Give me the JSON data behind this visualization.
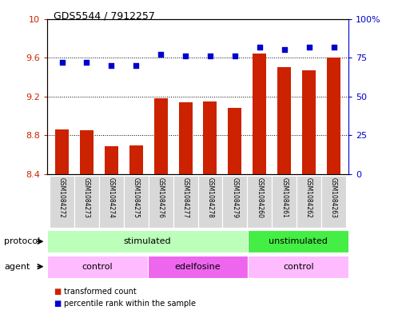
{
  "title": "GDS5544 / 7912257",
  "samples": [
    "GSM1084272",
    "GSM1084273",
    "GSM1084274",
    "GSM1084275",
    "GSM1084276",
    "GSM1084277",
    "GSM1084278",
    "GSM1084279",
    "GSM1084260",
    "GSM1084261",
    "GSM1084262",
    "GSM1084263"
  ],
  "bar_values": [
    8.86,
    8.85,
    8.69,
    8.7,
    9.18,
    9.14,
    9.15,
    9.08,
    9.64,
    9.5,
    9.47,
    9.6
  ],
  "scatter_values": [
    72,
    72,
    70,
    70,
    77,
    76,
    76,
    76,
    82,
    80,
    82,
    82
  ],
  "bar_color": "#cc2200",
  "scatter_color": "#0000cc",
  "ylim_left": [
    8.4,
    10.0
  ],
  "ylim_right": [
    0,
    100
  ],
  "yticks_left": [
    8.4,
    8.8,
    9.2,
    9.6,
    10.0
  ],
  "ytick_labels_left": [
    "8.4",
    "8.8",
    "9.2",
    "9.6",
    "10"
  ],
  "yticks_right": [
    0,
    25,
    50,
    75,
    100
  ],
  "ytick_labels_right": [
    "0",
    "25",
    "50",
    "75",
    "100%"
  ],
  "protocol_groups": [
    {
      "label": "stimulated",
      "start": 0,
      "end": 8,
      "color": "#bbffbb"
    },
    {
      "label": "unstimulated",
      "start": 8,
      "end": 12,
      "color": "#44ee44"
    }
  ],
  "agent_groups": [
    {
      "label": "control",
      "start": 0,
      "end": 4,
      "color": "#ffbbff"
    },
    {
      "label": "edelfosine",
      "start": 4,
      "end": 8,
      "color": "#ee66ee"
    },
    {
      "label": "control",
      "start": 8,
      "end": 12,
      "color": "#ffbbff"
    }
  ],
  "protocol_label": "protocol",
  "agent_label": "agent",
  "legend_bar_label": "transformed count",
  "legend_scatter_label": "percentile rank within the sample",
  "background_color": "#ffffff",
  "sample_box_color": "#d8d8d8",
  "grid_linestyle": ":",
  "grid_color": "#000000"
}
